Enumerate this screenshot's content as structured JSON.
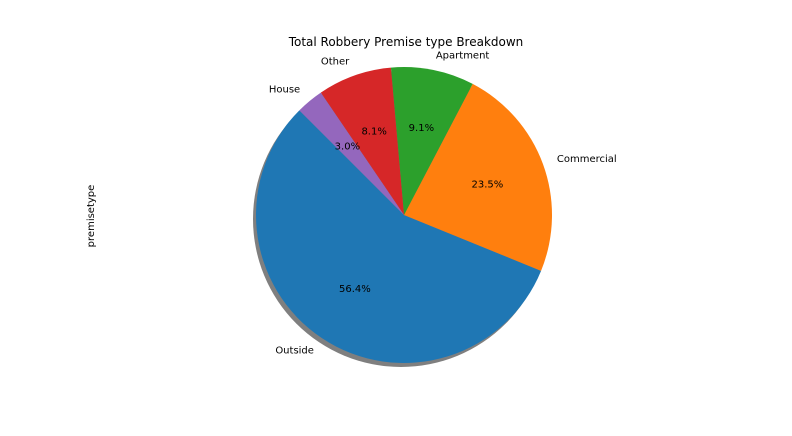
{
  "chart_data": {
    "type": "pie",
    "title": "Total Robbery Premise type Breakdown",
    "ylabel": "premisetype",
    "categories": [
      "Outside",
      "Commercial",
      "Apartment",
      "Other",
      "House"
    ],
    "values": [
      56.4,
      23.5,
      9.1,
      8.1,
      3.0
    ],
    "labels": [
      "56.4%",
      "23.5%",
      "9.1%",
      "8.1%",
      "3.0%"
    ],
    "colors": [
      "#1f77b4",
      "#ff7f0e",
      "#2ca02c",
      "#d62728",
      "#9467bd"
    ],
    "start_angle_deg": 135,
    "direction": "counterclockwise",
    "shadow": true
  }
}
